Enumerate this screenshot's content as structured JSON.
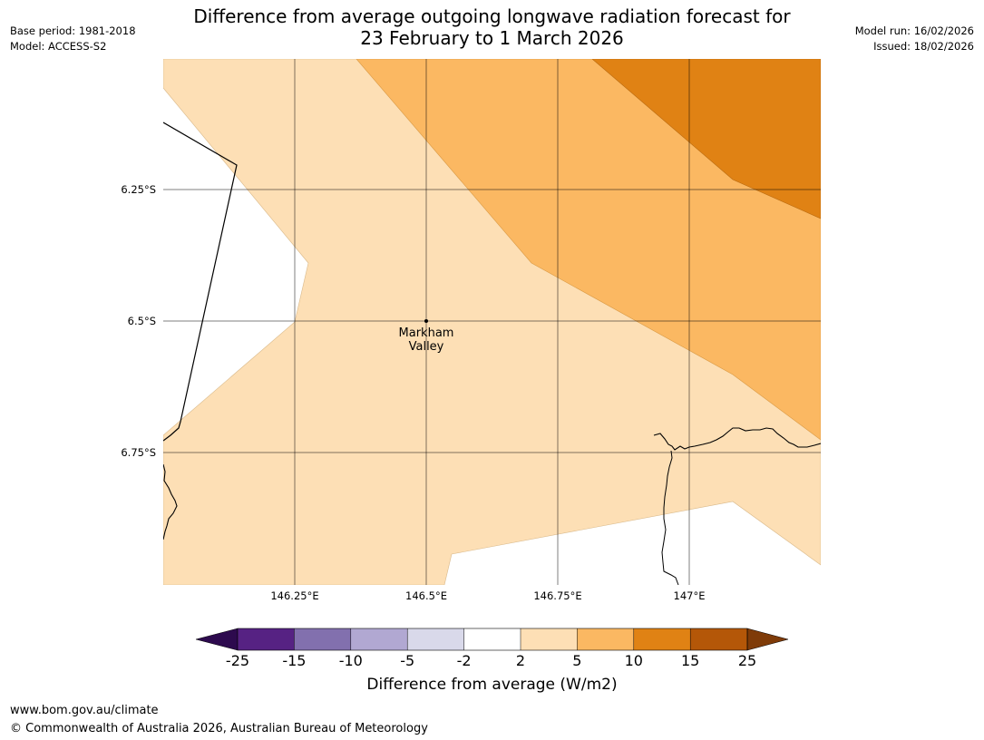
{
  "title_line1": "Difference from average outgoing longwave radiation forecast for",
  "title_line2": "23 February to 1 March 2026",
  "meta_left": {
    "base_period": "Base period: 1981-2018",
    "model": "Model: ACCESS-S2"
  },
  "meta_right": {
    "model_run": "Model run: 16/02/2026",
    "issued": "Issued: 18/02/2026"
  },
  "map": {
    "lat_labels": [
      "6.25°S",
      "6.5°S",
      "6.75°S"
    ],
    "lon_labels": [
      "146.25°E",
      "146.5°E",
      "146.75°E",
      "147°E"
    ],
    "place_label_line1": "Markham",
    "place_label_line2": "Valley",
    "place_marker": "point-marker"
  },
  "colorbar": {
    "ticks": [
      "-25",
      "-15",
      "-10",
      "-5",
      "-2",
      "2",
      "5",
      "10",
      "15",
      "25"
    ],
    "title": "Difference from average (W/m2)",
    "colors": {
      "below_min": "#2d0a4e",
      "bins": [
        "#562283",
        "#8270ae",
        "#b1a8d2",
        "#d9d9ea",
        "#ffffff",
        "#fddfb5",
        "#fbb862",
        "#e08214",
        "#b45708"
      ],
      "above_max": "#7f3b08"
    }
  },
  "legend_colors": {
    "band_2_5": "#fddfb5",
    "band_5_10": "#fbb862",
    "band_10_15": "#e08214",
    "no_data": "#ffffff"
  },
  "footer": {
    "url": "www.bom.gov.au/climate",
    "copyright": "© Commonwealth of Australia 2026, Australian Bureau of Meteorology"
  }
}
